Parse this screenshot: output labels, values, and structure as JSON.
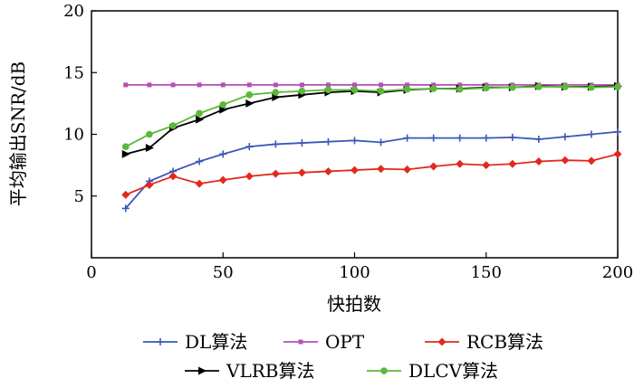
{
  "chart_data": {
    "type": "line",
    "title": "",
    "xlabel": "快拍数",
    "ylabel": "平均输出SNR/dB",
    "xlim": [
      0,
      200
    ],
    "ylim": [
      0,
      20
    ],
    "xticks": [
      0,
      50,
      100,
      150,
      200
    ],
    "yticks": [
      5,
      10,
      15,
      20
    ],
    "grid": false,
    "legend_position": "bottom",
    "x": [
      13,
      22,
      31,
      41,
      50,
      60,
      70,
      80,
      90,
      100,
      110,
      120,
      130,
      140,
      150,
      160,
      170,
      180,
      190,
      200
    ],
    "series": [
      {
        "name": "DL算法",
        "color": "#3a58b8",
        "marker": "plus",
        "values": [
          4.0,
          6.2,
          7.0,
          7.8,
          8.4,
          9.0,
          9.2,
          9.3,
          9.4,
          9.5,
          9.35,
          9.7,
          9.7,
          9.7,
          9.7,
          9.75,
          9.6,
          9.8,
          10.0,
          10.2
        ]
      },
      {
        "name": "OPT",
        "color": "#b44fb4",
        "marker": "square",
        "values": [
          14.0,
          14.0,
          14.0,
          14.0,
          14.0,
          14.0,
          14.0,
          14.0,
          14.0,
          14.0,
          14.0,
          14.0,
          14.0,
          14.0,
          14.0,
          14.0,
          14.0,
          14.0,
          14.0,
          14.0
        ]
      },
      {
        "name": "RCB算法",
        "color": "#e2281e",
        "marker": "diamond",
        "values": [
          5.1,
          5.9,
          6.6,
          6.0,
          6.3,
          6.6,
          6.8,
          6.9,
          7.0,
          7.1,
          7.2,
          7.15,
          7.4,
          7.6,
          7.5,
          7.6,
          7.8,
          7.9,
          7.85,
          8.4
        ]
      },
      {
        "name": "VLRB算法",
        "color": "#000000",
        "marker": "triangle",
        "values": [
          8.4,
          8.9,
          10.5,
          11.2,
          12.0,
          12.5,
          13.0,
          13.2,
          13.4,
          13.5,
          13.4,
          13.6,
          13.7,
          13.7,
          13.8,
          13.8,
          13.9,
          13.85,
          13.85,
          13.9
        ]
      },
      {
        "name": "DLCV算法",
        "color": "#5cb83a",
        "marker": "circle",
        "values": [
          9.0,
          10.0,
          10.7,
          11.7,
          12.4,
          13.2,
          13.4,
          13.5,
          13.6,
          13.6,
          13.5,
          13.65,
          13.7,
          13.65,
          13.75,
          13.8,
          13.85,
          13.85,
          13.8,
          13.85
        ]
      }
    ]
  }
}
